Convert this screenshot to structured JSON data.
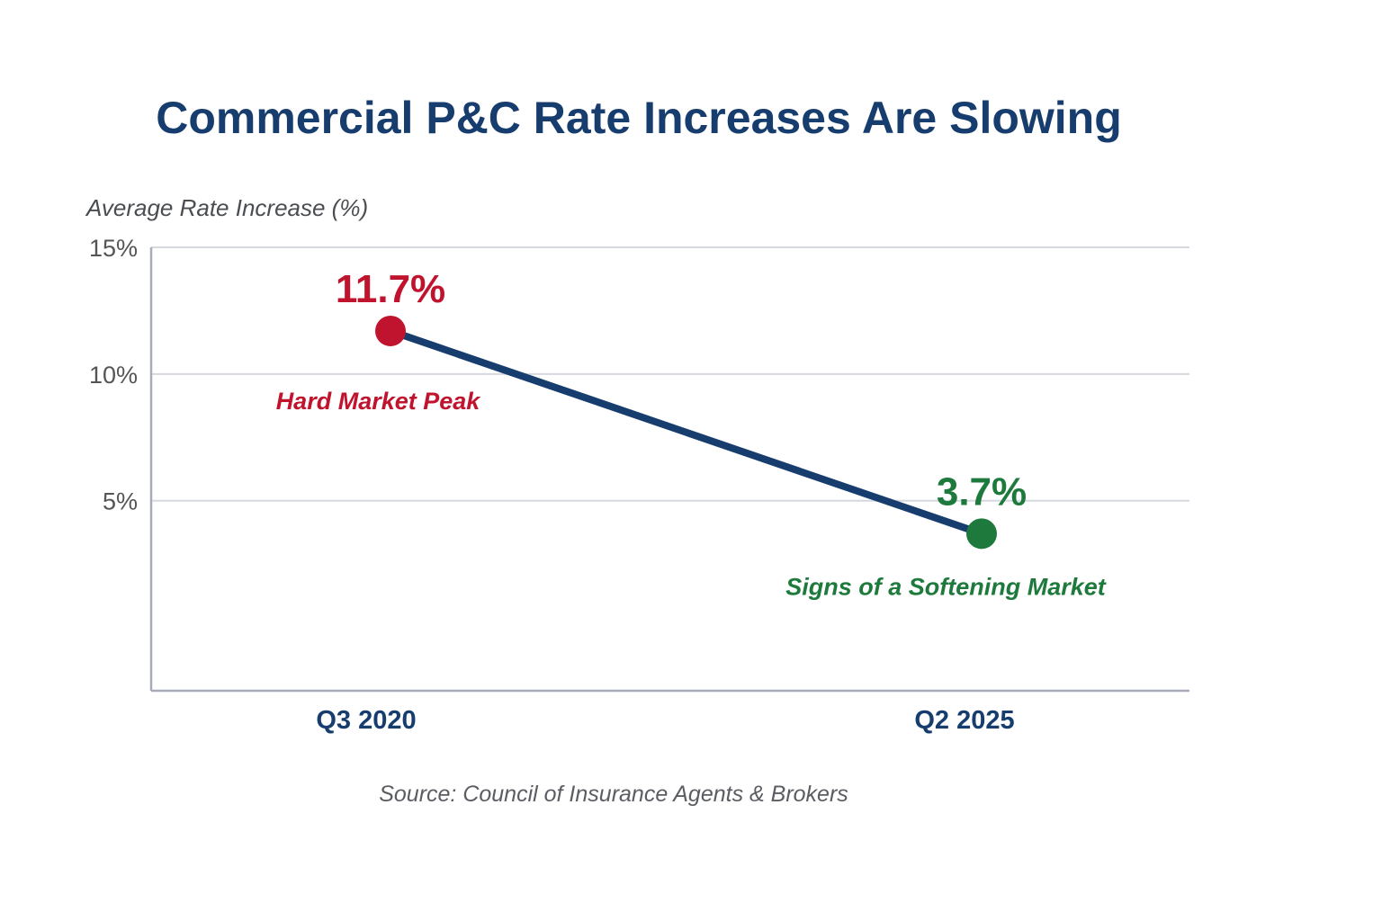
{
  "chart_data": {
    "type": "line",
    "title": "Commercial P&C Rate Increases Are Slowing",
    "ylabel": "Average Rate Increase (%)",
    "xlabel": "",
    "categories": [
      "Q3 2020",
      "Q2 2025"
    ],
    "values": [
      11.7,
      3.7
    ],
    "data_labels": [
      "11.7%",
      "3.7%"
    ],
    "annotations": [
      "Hard Market Peak",
      "Signs of a Softening Market"
    ],
    "yticks": [
      5,
      10,
      15
    ],
    "ytick_labels": [
      "5%",
      "10%",
      "15%"
    ],
    "ylim": [
      -2.5,
      15
    ],
    "grid": true,
    "legend": "none",
    "source": "Source: Council of Insurance Agents & Brokers",
    "colors": {
      "line": "#173d6e",
      "peak": "#c0142e",
      "soft": "#1e7a3c",
      "title": "#173d6e",
      "grid": "#d6d8e0",
      "axis": "#a8abb8"
    }
  }
}
